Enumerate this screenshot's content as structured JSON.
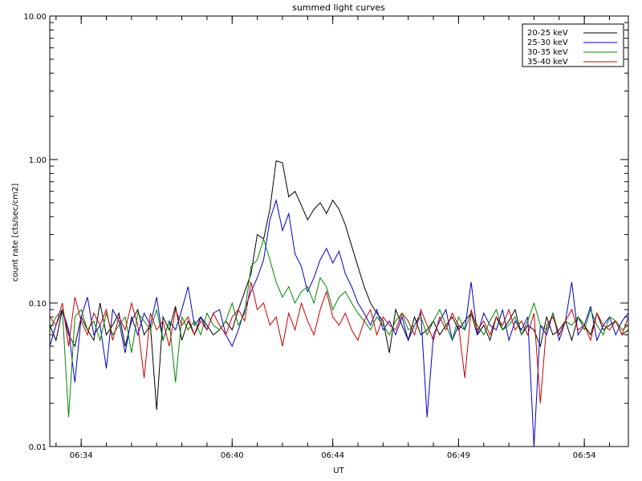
{
  "chart_data": {
    "type": "line",
    "title": "summed light curves",
    "xlabel": "UT",
    "ylabel": "count rate [cts/sec/cm2]",
    "y_scale": "log",
    "ylim": [
      0.01,
      10.0
    ],
    "xlim": [
      "06:32:45",
      "06:55:45"
    ],
    "x_ticks": [
      "06:34",
      "06:40",
      "06:44",
      "06:49",
      "06:54"
    ],
    "y_ticks": [
      "0.01",
      "0.10",
      "1.00",
      "10.00"
    ],
    "legend_position": "top-right",
    "grid": false,
    "x": [
      "06:32:45",
      "06:33:00",
      "06:33:15",
      "06:33:30",
      "06:33:45",
      "06:34:00",
      "06:34:15",
      "06:34:30",
      "06:34:45",
      "06:35:00",
      "06:35:15",
      "06:35:30",
      "06:35:45",
      "06:36:00",
      "06:36:15",
      "06:36:30",
      "06:36:45",
      "06:37:00",
      "06:37:15",
      "06:37:30",
      "06:37:45",
      "06:38:00",
      "06:38:15",
      "06:38:30",
      "06:38:45",
      "06:39:00",
      "06:39:15",
      "06:39:30",
      "06:39:45",
      "06:40:00",
      "06:40:15",
      "06:40:30",
      "06:40:45",
      "06:41:00",
      "06:41:15",
      "06:41:30",
      "06:41:45",
      "06:42:00",
      "06:42:15",
      "06:42:30",
      "06:42:45",
      "06:43:00",
      "06:43:15",
      "06:43:30",
      "06:43:45",
      "06:44:00",
      "06:44:15",
      "06:44:30",
      "06:44:45",
      "06:45:00",
      "06:45:15",
      "06:45:30",
      "06:45:45",
      "06:46:00",
      "06:46:15",
      "06:46:30",
      "06:46:45",
      "06:47:00",
      "06:47:15",
      "06:47:30",
      "06:47:45",
      "06:48:00",
      "06:48:15",
      "06:48:30",
      "06:48:45",
      "06:49:00",
      "06:49:15",
      "06:49:30",
      "06:49:45",
      "06:50:00",
      "06:50:15",
      "06:50:30",
      "06:50:45",
      "06:51:00",
      "06:51:15",
      "06:51:30",
      "06:51:45",
      "06:52:00",
      "06:52:15",
      "06:52:30",
      "06:52:45",
      "06:53:00",
      "06:53:15",
      "06:53:30",
      "06:53:45",
      "06:54:00",
      "06:54:15",
      "06:54:30",
      "06:54:45",
      "06:55:00",
      "06:55:15",
      "06:55:30",
      "06:55:45"
    ],
    "series": [
      {
        "name": "20-25 keV",
        "color": "#000000",
        "values": [
          0.07,
          0.055,
          0.09,
          0.06,
          0.05,
          0.08,
          0.065,
          0.055,
          0.1,
          0.06,
          0.07,
          0.085,
          0.05,
          0.075,
          0.09,
          0.06,
          0.07,
          0.018,
          0.08,
          0.065,
          0.095,
          0.055,
          0.075,
          0.06,
          0.08,
          0.07,
          0.06,
          0.065,
          0.075,
          0.065,
          0.09,
          0.12,
          0.16,
          0.3,
          0.28,
          0.45,
          0.98,
          0.95,
          0.55,
          0.6,
          0.48,
          0.38,
          0.45,
          0.5,
          0.42,
          0.52,
          0.45,
          0.35,
          0.25,
          0.18,
          0.13,
          0.1,
          0.085,
          0.075,
          0.045,
          0.09,
          0.07,
          0.055,
          0.08,
          0.06,
          0.065,
          0.075,
          0.06,
          0.07,
          0.08,
          0.065,
          0.075,
          0.085,
          0.06,
          0.07,
          0.055,
          0.08,
          0.065,
          0.075,
          0.09,
          0.06,
          0.07,
          0.065,
          0.05,
          0.08,
          0.06,
          0.065,
          0.075,
          0.055,
          0.08,
          0.07,
          0.06,
          0.085,
          0.065,
          0.07,
          0.075,
          0.06,
          0.065
        ]
      },
      {
        "name": "25-30 keV",
        "color": "#0000cc",
        "values": [
          0.05,
          0.07,
          0.09,
          0.065,
          0.028,
          0.08,
          0.11,
          0.06,
          0.07,
          0.035,
          0.09,
          0.075,
          0.045,
          0.08,
          0.06,
          0.085,
          0.07,
          0.11,
          0.055,
          0.075,
          0.065,
          0.09,
          0.13,
          0.07,
          0.08,
          0.065,
          0.085,
          0.09,
          0.06,
          0.05,
          0.065,
          0.09,
          0.12,
          0.15,
          0.2,
          0.38,
          0.52,
          0.32,
          0.42,
          0.22,
          0.18,
          0.12,
          0.15,
          0.2,
          0.24,
          0.19,
          0.23,
          0.16,
          0.13,
          0.1,
          0.085,
          0.07,
          0.09,
          0.065,
          0.075,
          0.06,
          0.08,
          0.055,
          0.07,
          0.085,
          0.016,
          0.06,
          0.075,
          0.09,
          0.055,
          0.07,
          0.065,
          0.14,
          0.06,
          0.085,
          0.07,
          0.065,
          0.09,
          0.055,
          0.075,
          0.065,
          0.08,
          0.008,
          0.07,
          0.06,
          0.085,
          0.055,
          0.075,
          0.14,
          0.06,
          0.07,
          0.095,
          0.055,
          0.07,
          0.08,
          0.06,
          0.075,
          0.085
        ]
      },
      {
        "name": "30-35 keV",
        "color": "#008800",
        "values": [
          0.065,
          0.08,
          0.09,
          0.016,
          0.08,
          0.09,
          0.065,
          0.075,
          0.055,
          0.085,
          0.06,
          0.07,
          0.08,
          0.045,
          0.085,
          0.075,
          0.065,
          0.09,
          0.055,
          0.075,
          0.028,
          0.08,
          0.065,
          0.075,
          0.06,
          0.085,
          0.07,
          0.065,
          0.075,
          0.1,
          0.07,
          0.085,
          0.18,
          0.2,
          0.28,
          0.2,
          0.14,
          0.11,
          0.13,
          0.1,
          0.12,
          0.13,
          0.1,
          0.15,
          0.13,
          0.09,
          0.11,
          0.12,
          0.1,
          0.085,
          0.075,
          0.065,
          0.08,
          0.07,
          0.06,
          0.075,
          0.085,
          0.065,
          0.07,
          0.08,
          0.06,
          0.075,
          0.09,
          0.07,
          0.055,
          0.08,
          0.065,
          0.085,
          0.07,
          0.06,
          0.075,
          0.09,
          0.065,
          0.07,
          0.08,
          0.06,
          0.075,
          0.1,
          0.07,
          0.065,
          0.085,
          0.06,
          0.075,
          0.07,
          0.08,
          0.065,
          0.09,
          0.07,
          0.06,
          0.08,
          0.075,
          0.065,
          0.07
        ]
      },
      {
        "name": "35-40 keV",
        "color": "#cc0000",
        "values": [
          0.08,
          0.07,
          0.1,
          0.05,
          0.11,
          0.075,
          0.06,
          0.085,
          0.07,
          0.09,
          0.055,
          0.08,
          0.065,
          0.1,
          0.07,
          0.03,
          0.085,
          0.065,
          0.075,
          0.05,
          0.09,
          0.07,
          0.08,
          0.06,
          0.075,
          0.065,
          0.085,
          0.07,
          0.06,
          0.08,
          0.09,
          0.075,
          0.14,
          0.09,
          0.1,
          0.07,
          0.08,
          0.05,
          0.085,
          0.065,
          0.1,
          0.075,
          0.06,
          0.09,
          0.12,
          0.08,
          0.07,
          0.085,
          0.065,
          0.055,
          0.075,
          0.09,
          0.06,
          0.08,
          0.07,
          0.065,
          0.085,
          0.075,
          0.06,
          0.09,
          0.07,
          0.055,
          0.08,
          0.065,
          0.085,
          0.07,
          0.03,
          0.09,
          0.065,
          0.075,
          0.06,
          0.08,
          0.07,
          0.09,
          0.065,
          0.075,
          0.06,
          0.085,
          0.02,
          0.07,
          0.08,
          0.06,
          0.075,
          0.09,
          0.065,
          0.07,
          0.055,
          0.085,
          0.07,
          0.065,
          0.075,
          0.06,
          0.08
        ]
      }
    ]
  }
}
